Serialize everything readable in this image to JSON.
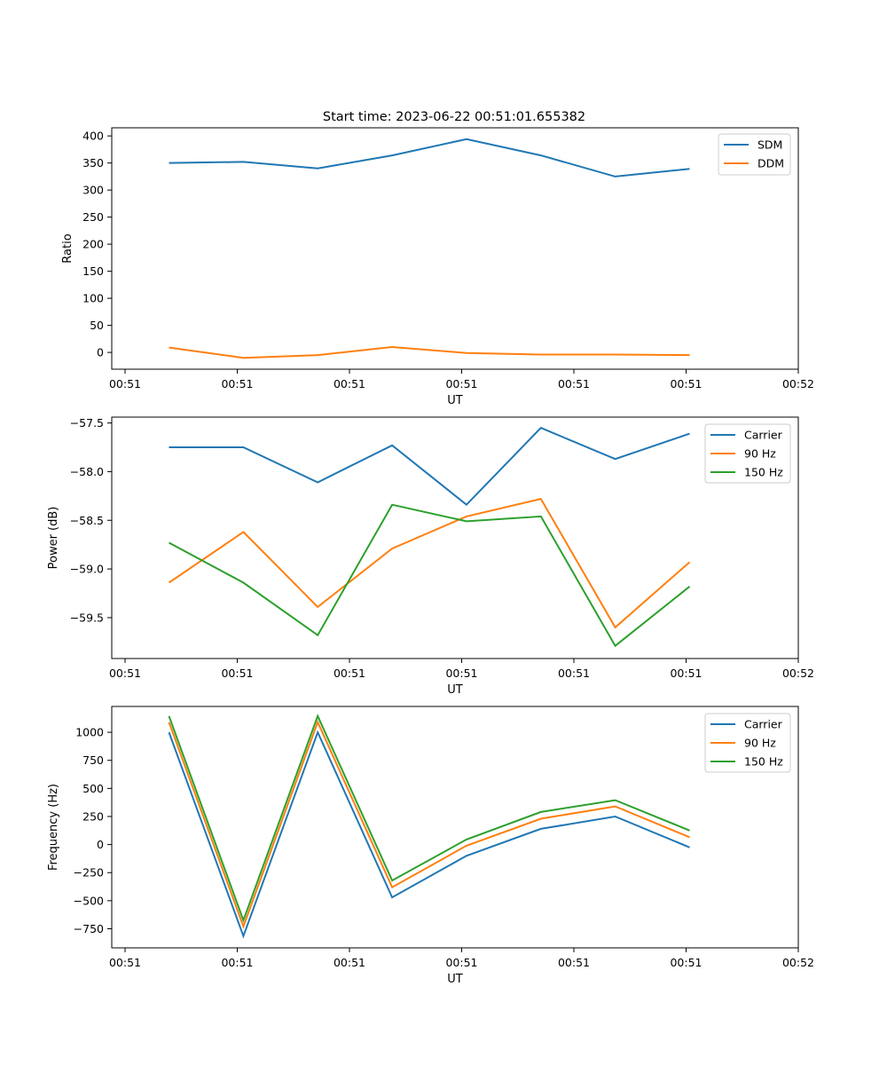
{
  "figure": {
    "title": "Start time: 2023-06-22 00:51:01.655382"
  },
  "chart_data": [
    {
      "type": "line",
      "title": "Start time: 2023-06-22 00:51:01.655382",
      "xlabel": "UT",
      "ylabel": "Ratio",
      "xticks": [
        "00:51",
        "00:51",
        "00:51",
        "00:51",
        "00:51",
        "00:51",
        "00:52"
      ],
      "xlim": [
        0,
        6
      ],
      "ylim": [
        -31,
        415
      ],
      "yticks": [
        0,
        50,
        100,
        150,
        200,
        250,
        300,
        350,
        400
      ],
      "grid": false,
      "legend": "top-right",
      "x": [
        0.5,
        1.15,
        1.8,
        2.45,
        3.1,
        3.75,
        4.4,
        5.05
      ],
      "series": [
        {
          "name": "SDM",
          "color": "#1f77b4",
          "values": [
            350,
            352,
            340,
            364,
            394,
            364,
            325,
            339
          ]
        },
        {
          "name": "DDM",
          "color": "#ff7f0e",
          "values": [
            9,
            -10,
            -5,
            10,
            -1,
            -4,
            -4,
            -5
          ]
        }
      ]
    },
    {
      "type": "line",
      "title": "",
      "xlabel": "UT",
      "ylabel": "Power (dB)",
      "xticks": [
        "00:51",
        "00:51",
        "00:51",
        "00:51",
        "00:51",
        "00:51",
        "00:52"
      ],
      "xlim": [
        0,
        6
      ],
      "ylim": [
        -59.92,
        -57.44
      ],
      "yticks": [
        -59.5,
        -59.0,
        -58.5,
        -58.0,
        -57.5
      ],
      "grid": false,
      "legend": "top-right",
      "x": [
        0.5,
        1.15,
        1.8,
        2.45,
        3.1,
        3.75,
        4.4,
        5.05
      ],
      "series": [
        {
          "name": "Carrier",
          "color": "#1f77b4",
          "values": [
            -57.75,
            -57.75,
            -58.11,
            -57.73,
            -58.34,
            -57.55,
            -57.87,
            -57.61
          ]
        },
        {
          "name": "90 Hz",
          "color": "#ff7f0e",
          "values": [
            -59.14,
            -58.62,
            -59.39,
            -58.79,
            -58.46,
            -58.28,
            -59.6,
            -58.93
          ]
        },
        {
          "name": "150 Hz",
          "color": "#2ca02c",
          "values": [
            -58.73,
            -59.14,
            -59.68,
            -58.34,
            -58.51,
            -58.46,
            -59.79,
            -59.18
          ]
        }
      ]
    },
    {
      "type": "line",
      "title": "",
      "xlabel": "UT",
      "ylabel": "Frequency (Hz)",
      "xticks": [
        "00:51",
        "00:51",
        "00:51",
        "00:51",
        "00:51",
        "00:51",
        "00:52"
      ],
      "xlim": [
        0,
        6
      ],
      "ylim": [
        -920,
        1230
      ],
      "yticks": [
        -750,
        -500,
        -250,
        0,
        250,
        500,
        750,
        1000
      ],
      "grid": false,
      "legend": "top-right",
      "x": [
        0.5,
        1.15,
        1.8,
        2.45,
        3.1,
        3.75,
        4.4,
        5.05
      ],
      "series": [
        {
          "name": "Carrier",
          "color": "#1f77b4",
          "values": [
            1000,
            -815,
            1000,
            -470,
            -100,
            140,
            250,
            -25
          ]
        },
        {
          "name": "90 Hz",
          "color": "#ff7f0e",
          "values": [
            1090,
            -730,
            1090,
            -380,
            -10,
            230,
            340,
            65
          ]
        },
        {
          "name": "150 Hz",
          "color": "#2ca02c",
          "values": [
            1145,
            -675,
            1145,
            -320,
            45,
            290,
            395,
            125
          ]
        }
      ]
    }
  ]
}
